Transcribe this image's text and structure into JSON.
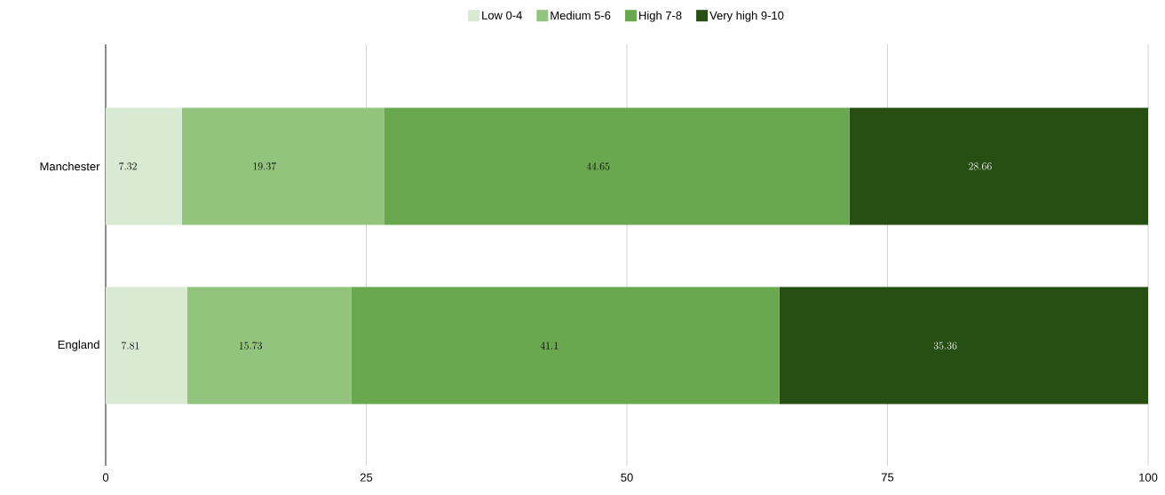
{
  "chart_data": {
    "type": "bar",
    "orientation": "horizontal",
    "stacked": true,
    "categories": [
      "Manchester",
      "England"
    ],
    "series": [
      {
        "name": "Low 0-4",
        "color": "#d9ead3",
        "values": [
          7.32,
          7.81
        ]
      },
      {
        "name": "Medium 5-6",
        "color": "#93c47d",
        "values": [
          19.37,
          15.73
        ]
      },
      {
        "name": "High 7-8",
        "color": "#6aa84f",
        "values": [
          44.65,
          41.1
        ]
      },
      {
        "name": "Very high 9-10",
        "color": "#274e13",
        "values": [
          28.66,
          35.36
        ]
      }
    ],
    "xlim": [
      0,
      100
    ],
    "xticks": [
      0,
      25,
      50,
      75,
      100
    ],
    "grid": "x",
    "legend": "top",
    "data_labels": true
  }
}
